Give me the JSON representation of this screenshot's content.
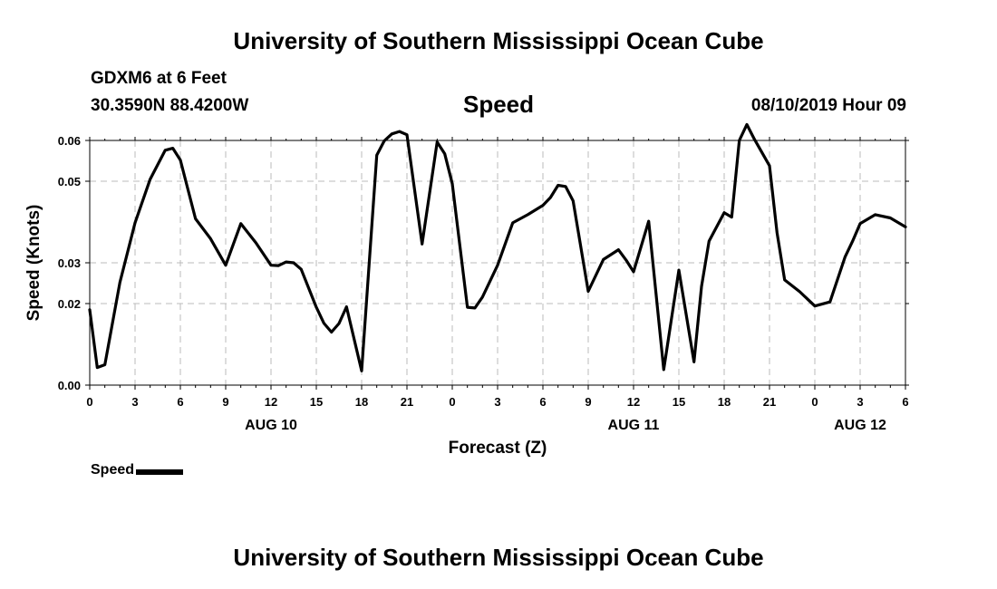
{
  "header": {
    "title": "University of Southern Mississippi Ocean Cube",
    "station": "GDXM6 at 6 Feet",
    "coords": "30.3590N 88.4200W",
    "run_time": "08/10/2019 Hour 09"
  },
  "footer": {
    "title": "University of Southern Mississippi Ocean Cube"
  },
  "legend": {
    "label": "Speed"
  },
  "colors": {
    "line": "#000000",
    "grid": "#bbbbbb",
    "axis": "#000000"
  },
  "chart_data": {
    "type": "line",
    "title": "Speed",
    "xlabel": "Forecast (Z)",
    "ylabel": "Speed (Knots)",
    "xlim": [
      0,
      54
    ],
    "ylim": [
      0.0,
      0.06
    ],
    "x_ticks": [
      0,
      3,
      6,
      9,
      12,
      15,
      18,
      21,
      24,
      27,
      30,
      33,
      36,
      39,
      42,
      45,
      48,
      51,
      54
    ],
    "x_tick_labels": [
      "0",
      "3",
      "6",
      "9",
      "12",
      "15",
      "18",
      "21",
      "0",
      "3",
      "6",
      "9",
      "12",
      "15",
      "18",
      "21",
      "0",
      "3",
      "6"
    ],
    "y_ticks": [
      0.0,
      0.02,
      0.03,
      0.05,
      0.06
    ],
    "y_tick_labels": [
      "0.00",
      "0.02",
      "0.03",
      "0.05",
      "0.06"
    ],
    "date_labels": [
      {
        "x": 12,
        "label": "AUG 10"
      },
      {
        "x": 36,
        "label": "AUG 11"
      },
      {
        "x": 51,
        "label": "AUG 12"
      }
    ],
    "grid": true,
    "series": [
      {
        "name": "Speed",
        "x": [
          0,
          0.5,
          1,
          2,
          3,
          4,
          5,
          5.5,
          6,
          7,
          8,
          9,
          10,
          11,
          12,
          12.5,
          13,
          13.5,
          14,
          15,
          15.5,
          16,
          16.5,
          17,
          18,
          19,
          19.5,
          20,
          20.5,
          21,
          22,
          23,
          23.5,
          24,
          25,
          25.5,
          26,
          27,
          28,
          29,
          30,
          30.5,
          31,
          31.5,
          32,
          33,
          34,
          35,
          35.5,
          36,
          37,
          38,
          39,
          40,
          40.5,
          41,
          42,
          42.5,
          43,
          43.5,
          44,
          45,
          45.5,
          46,
          47,
          48,
          49,
          50,
          50.5,
          51,
          52,
          53,
          54
        ],
        "y": [
          0.0185,
          0.0043,
          0.005,
          0.0252,
          0.0398,
          0.0505,
          0.0576,
          0.0581,
          0.0552,
          0.0408,
          0.0359,
          0.0294,
          0.0396,
          0.0349,
          0.0294,
          0.0293,
          0.0302,
          0.03,
          0.0284,
          0.0191,
          0.0152,
          0.013,
          0.0151,
          0.0192,
          0.0035,
          0.0564,
          0.0599,
          0.0616,
          0.0622,
          0.0614,
          0.0346,
          0.0596,
          0.0567,
          0.0494,
          0.0191,
          0.0189,
          0.0216,
          0.0294,
          0.0398,
          0.0418,
          0.0441,
          0.046,
          0.049,
          0.0487,
          0.0452,
          0.023,
          0.0308,
          0.0332,
          0.0307,
          0.0278,
          0.0402,
          0.0038,
          0.0282,
          0.0057,
          0.0242,
          0.0353,
          0.0423,
          0.0412,
          0.06,
          0.0639,
          0.0603,
          0.0538,
          0.0374,
          0.0258,
          0.0229,
          0.0194,
          0.0204,
          0.0314,
          0.0353,
          0.0396,
          0.0418,
          0.041,
          0.0388
        ]
      }
    ]
  }
}
